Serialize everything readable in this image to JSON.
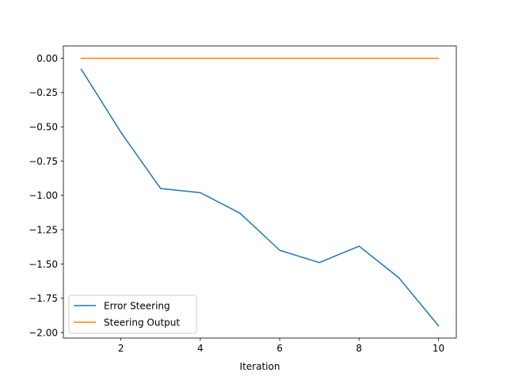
{
  "chart_data": {
    "type": "line",
    "title": "",
    "xlabel": "Iteration",
    "ylabel": "",
    "x": [
      1,
      2,
      3,
      4,
      5,
      6,
      7,
      8,
      9,
      10
    ],
    "xlim": [
      0.55,
      10.45
    ],
    "ylim": [
      -2.04,
      0.09
    ],
    "xticks": [
      2,
      4,
      6,
      8,
      10
    ],
    "xtick_labels": [
      "2",
      "4",
      "6",
      "8",
      "10"
    ],
    "yticks": [
      0.0,
      -0.25,
      -0.5,
      -0.75,
      -1.0,
      -1.25,
      -1.5,
      -1.75,
      -2.0
    ],
    "ytick_labels": [
      "0.00",
      "−0.25",
      "−0.50",
      "−0.75",
      "−1.00",
      "−1.25",
      "−1.50",
      "−1.75",
      "−2.00"
    ],
    "grid": false,
    "legend_placement": "lower left",
    "series": [
      {
        "name": "Error Steering",
        "color": "#1f77b4",
        "values": [
          -0.08,
          -0.54,
          -0.95,
          -0.98,
          -1.13,
          -1.4,
          -1.49,
          -1.37,
          -1.6,
          -1.95
        ]
      },
      {
        "name": "Steering Output",
        "color": "#ff7f0e",
        "values": [
          0,
          0,
          0,
          0,
          0,
          0,
          0,
          0,
          0,
          0
        ]
      }
    ]
  }
}
